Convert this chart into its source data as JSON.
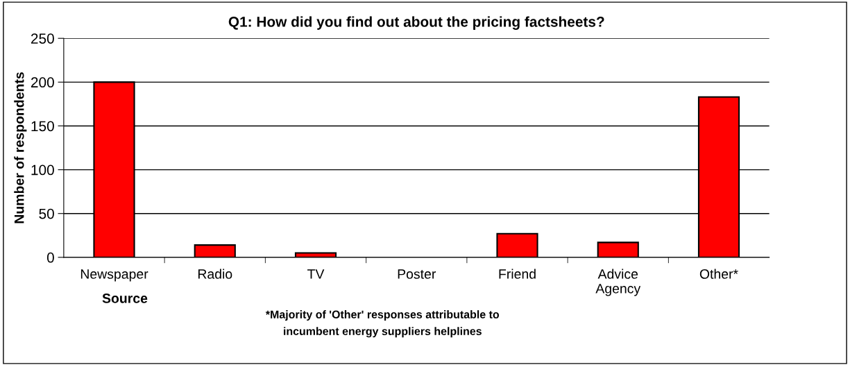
{
  "chart_data": {
    "type": "bar",
    "title": "Q1: How did you find out about the pricing factsheets?",
    "xlabel": "Source",
    "ylabel": "Number of respondents",
    "categories": [
      "Newspaper",
      "Radio",
      "TV",
      "Poster",
      "Friend",
      "Advice\nAgency",
      "Other*"
    ],
    "values": [
      200,
      14,
      5,
      0,
      27,
      17,
      183
    ],
    "color": "#ff0000",
    "ylim": [
      0,
      250
    ],
    "yticks": [
      0,
      50,
      100,
      150,
      200,
      250
    ],
    "grid": "y",
    "annotations": [
      "*Majority of 'Other' responses attributable to\nincumbent energy suppliers helplines"
    ]
  }
}
